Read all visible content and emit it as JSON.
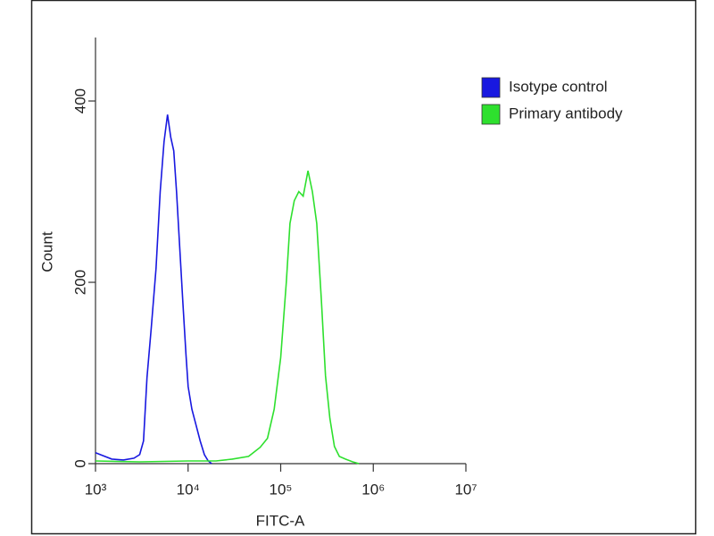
{
  "chart_data": {
    "type": "line",
    "x_label": "FITC-A",
    "y_label": "Count",
    "xscale": "log",
    "xlim": [
      1000,
      10000000
    ],
    "ylim": [
      0,
      470
    ],
    "xticks": [
      {
        "value": 1000,
        "label": "10³"
      },
      {
        "value": 10000,
        "label": "10⁴"
      },
      {
        "value": 100000,
        "label": "10⁵"
      },
      {
        "value": 1000000,
        "label": "10⁶"
      },
      {
        "value": 10000000,
        "label": "10⁷"
      }
    ],
    "yticks": [
      0,
      200,
      400
    ],
    "legend": "top-right",
    "series": [
      {
        "name": "Isotype control",
        "color": "#1818e0",
        "x": [
          1000,
          1500,
          2000,
          2600,
          3000,
          3300,
          3600,
          4000,
          4500,
          5000,
          5500,
          6000,
          6500,
          7000,
          7500,
          8000,
          8800,
          9500,
          10000,
          11000,
          12000,
          13500,
          15000,
          16500,
          18000
        ],
        "values": [
          12,
          5,
          4,
          6,
          10,
          25,
          95,
          150,
          215,
          300,
          355,
          385,
          360,
          345,
          300,
          250,
          176,
          120,
          85,
          60,
          45,
          25,
          10,
          3,
          0
        ]
      },
      {
        "name": "Primary antibody",
        "color": "#2ee02e",
        "x": [
          1000,
          3000,
          10000,
          20000,
          30000,
          45000,
          60000,
          72000,
          85000,
          100000,
          115000,
          126000,
          140000,
          157000,
          175000,
          197000,
          220000,
          245000,
          275000,
          305000,
          340000,
          380000,
          430000,
          500000,
          600000,
          700000
        ],
        "values": [
          3,
          2,
          3,
          3,
          5,
          8,
          18,
          28,
          60,
          117,
          200,
          265,
          290,
          300,
          295,
          323,
          300,
          265,
          180,
          97,
          50,
          19,
          8,
          5,
          2,
          0
        ]
      }
    ]
  }
}
